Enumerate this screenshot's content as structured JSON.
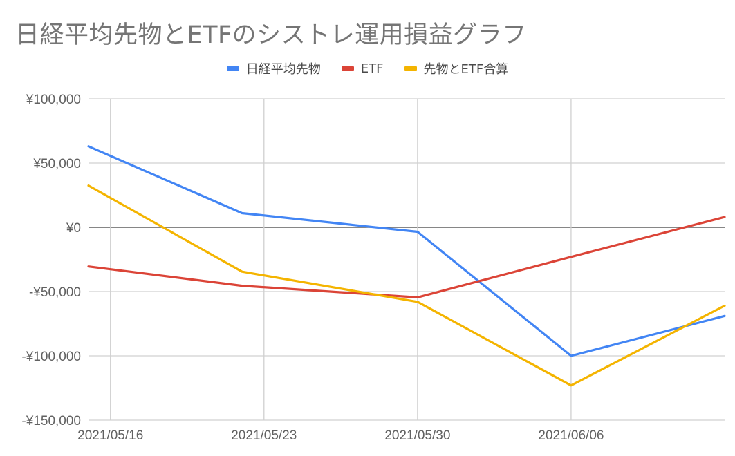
{
  "chart_data": {
    "type": "line",
    "title": "日経平均先物とETFのシストレ運用損益グラフ",
    "xlabel": "",
    "ylabel": "",
    "x": [
      "2021-05-15",
      "2021-05-22",
      "2021-05-30",
      "2021-06-06",
      "2021-06-13"
    ],
    "x_ticks": [
      "2021-05-16",
      "2021-05-23",
      "2021-05-30",
      "2021-06-06"
    ],
    "x_tick_labels": [
      "2021/05/16",
      "2021/05/23",
      "2021/05/30",
      "2021/06/06"
    ],
    "ylim": [
      -150000,
      100000
    ],
    "y_ticks": [
      100000,
      50000,
      0,
      -50000,
      -100000,
      -150000
    ],
    "y_tick_labels": [
      "¥100,000",
      "¥50,000",
      "¥0",
      "-¥50,000",
      "-¥100,000",
      "-¥150,000"
    ],
    "series": [
      {
        "name": "日経平均先物",
        "color": "#4285f4",
        "values": [
          63000,
          11000,
          -3500,
          -100000,
          -69000
        ]
      },
      {
        "name": "ETF",
        "color": "#db4437",
        "values": [
          -30500,
          -45500,
          -54500,
          -23000,
          8000
        ]
      },
      {
        "name": "先物とETF合算",
        "color": "#f4b400",
        "values": [
          32500,
          -34500,
          -58000,
          -123000,
          -61000
        ]
      }
    ],
    "grid": true,
    "legend_position": "top"
  }
}
